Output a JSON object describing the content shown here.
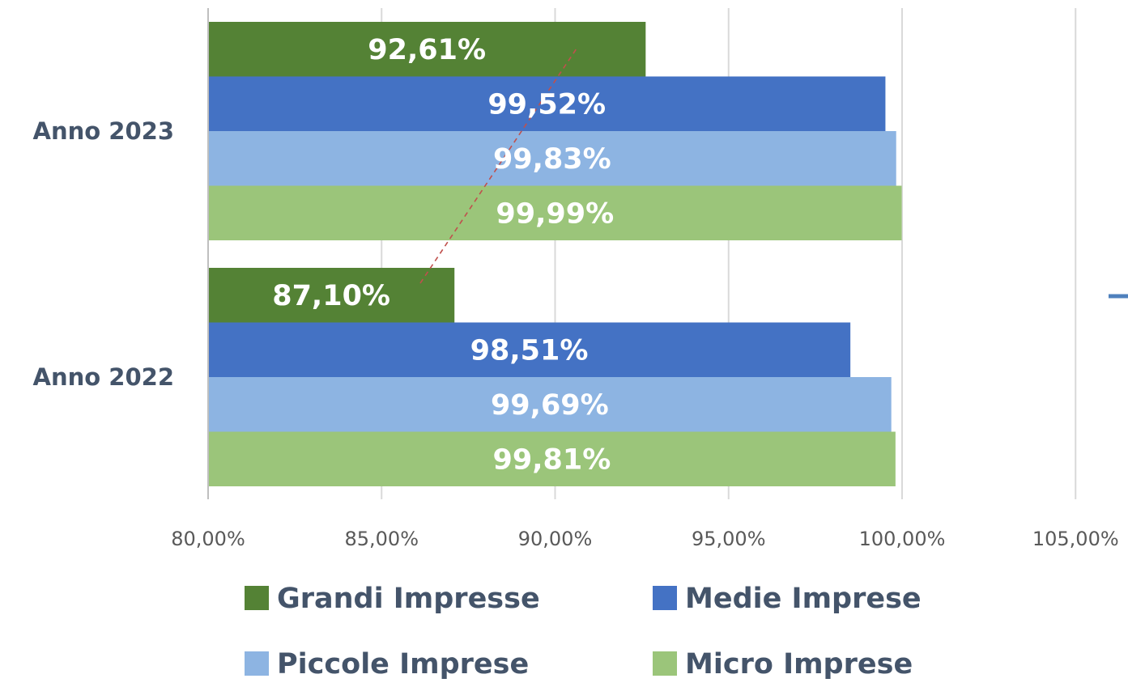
{
  "chart_data": {
    "type": "bar",
    "orientation": "horizontal",
    "categories": [
      "Anno 2023",
      "Anno 2022"
    ],
    "series": [
      {
        "name": "Grandi Impresse",
        "values": [
          92.61,
          87.1
        ],
        "labels": [
          "92,61%",
          "87,10%"
        ],
        "color": "#548235"
      },
      {
        "name": "Medie Imprese",
        "values": [
          99.52,
          98.51
        ],
        "labels": [
          "99,52%",
          "98,51%"
        ],
        "color": "#4472c4"
      },
      {
        "name": "Piccole Imprese",
        "values": [
          99.83,
          99.69
        ],
        "labels": [
          "99,83%",
          "99,69%"
        ],
        "color": "#8db4e2"
      },
      {
        "name": "Micro Imprese",
        "values": [
          99.99,
          99.81
        ],
        "labels": [
          "99,99%",
          "99,81%"
        ],
        "color": "#9bc57a"
      }
    ],
    "xlim": [
      80,
      105
    ],
    "ticks": [
      80,
      85,
      90,
      95,
      100,
      105
    ],
    "tick_labels": [
      "80,00%",
      "85,00%",
      "90,00%",
      "95,00%",
      "100,00%",
      "105,00%"
    ],
    "grid": true,
    "legend_position": "bottom",
    "title": "",
    "xlabel": "",
    "ylabel": "",
    "trendline": {
      "series": "Grandi Impresse",
      "style": "dashed",
      "color": "#c0504d"
    },
    "gridline_color": "#d9d9d9",
    "axis_color": "#bfbfbf",
    "arrow_color": "#4f81bd"
  }
}
